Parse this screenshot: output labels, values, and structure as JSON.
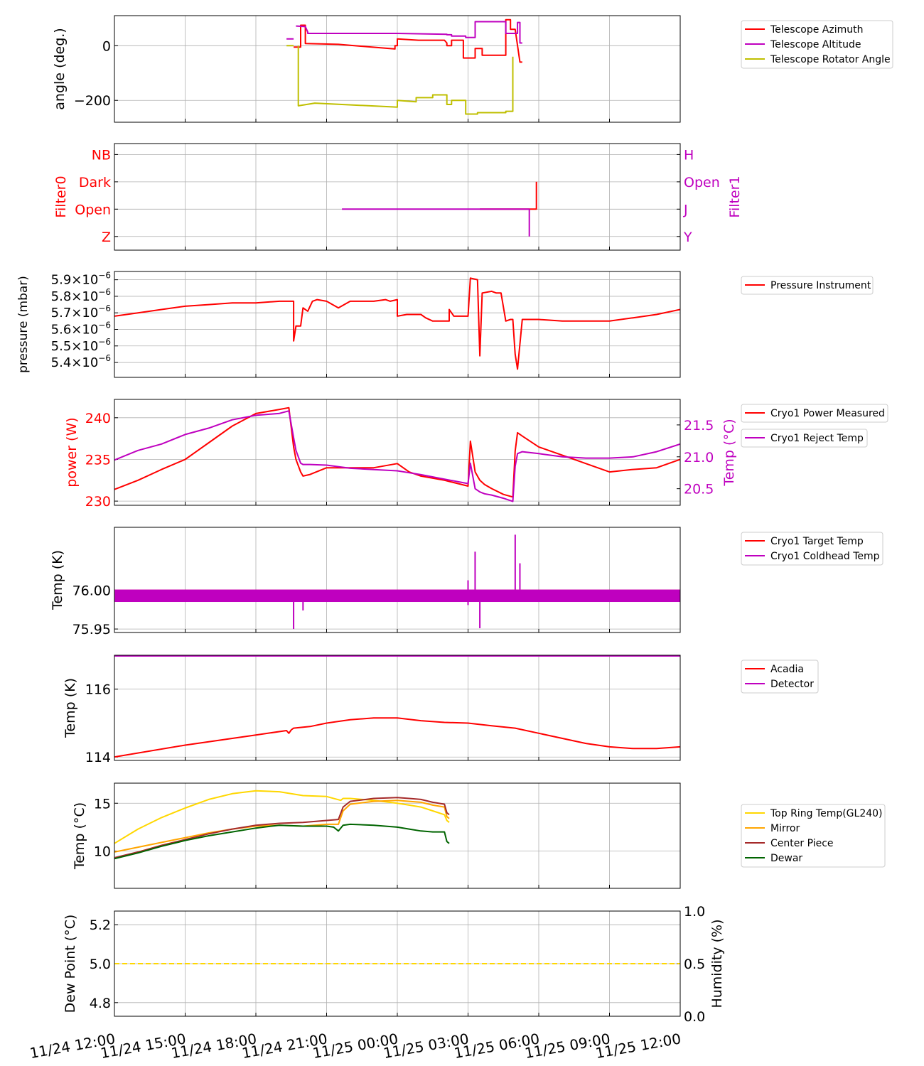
{
  "time_axis": {
    "start": "11/24 12:00",
    "end": "11/25 12:00",
    "tick_hours": [
      0,
      3,
      6,
      9,
      12,
      15,
      18,
      21,
      24
    ],
    "tick_labels": [
      "11/24 12:00",
      "11/24 15:00",
      "11/24 18:00",
      "11/24 21:00",
      "11/25 00:00",
      "11/25 03:00",
      "11/25 06:00",
      "11/25 09:00",
      "11/25 12:00"
    ]
  },
  "colors": {
    "red": "#ff0000",
    "magenta": "#bf00bf",
    "olive": "#bfbf00",
    "gold": "#ffd700",
    "orange": "#ffa500",
    "brown": "#a52a2a",
    "darkgreen": "#006400",
    "grid": "#b0b0b0"
  },
  "chart_data": [
    {
      "id": "telescope",
      "type": "line",
      "ylabel": "angle (deg.)",
      "ylim": [
        -280,
        110
      ],
      "yticks": [
        0,
        -200
      ],
      "ytick_labels": [
        "0",
        "−200"
      ],
      "series": [
        {
          "name": "Telescope Azimuth",
          "color": "#ff0000",
          "x": [
            7.3,
            7.3,
            7.6,
            7.6,
            7.9,
            7.9,
            8.1,
            8.1,
            9.5,
            11.9,
            11.9,
            12.0,
            12.0,
            12.9,
            12.9,
            14.0,
            14.1,
            14.1,
            14.3,
            14.3,
            14.8,
            14.8,
            15.3,
            15.3,
            15.6,
            15.6,
            16.6,
            16.6,
            16.8,
            16.8,
            17.0,
            17.2,
            17.2,
            17.3
          ],
          "y": [
            -60,
            -60,
            null,
            -5,
            -5,
            75,
            75,
            8,
            5,
            -12,
            0,
            0,
            25,
            20,
            20,
            20,
            10,
            0,
            0,
            20,
            20,
            -45,
            -45,
            -10,
            -10,
            -35,
            -35,
            95,
            95,
            60,
            60,
            -60,
            -60,
            -60
          ]
        },
        {
          "name": "Telescope Altitude",
          "color": "#bf00bf",
          "x": [
            7.3,
            7.6,
            null,
            7.7,
            8.1,
            8.2,
            8.2,
            10.0,
            12.0,
            14.1,
            14.1,
            14.3,
            14.3,
            14.9,
            14.9,
            15.3,
            15.3,
            16.6,
            16.6,
            17.1,
            17.1,
            17.2,
            17.2,
            17.3
          ],
          "y": [
            25,
            25,
            null,
            72,
            70,
            50,
            45,
            45,
            45,
            42,
            40,
            40,
            35,
            35,
            30,
            30,
            88,
            88,
            45,
            45,
            85,
            85,
            10,
            10
          ]
        },
        {
          "name": "Telescope Rotator Angle",
          "color": "#bfbf00",
          "x": [
            7.3,
            7.6,
            7.6,
            7.8,
            7.8,
            8.5,
            12.0,
            12.0,
            12.8,
            12.8,
            13.5,
            13.5,
            14.1,
            14.1,
            14.3,
            14.3,
            14.9,
            14.9,
            15.4,
            15.4,
            16.6,
            16.6,
            16.9,
            16.9
          ],
          "y": [
            0,
            0,
            null,
            0,
            -220,
            -210,
            -225,
            -200,
            -205,
            -190,
            -190,
            -180,
            -180,
            -215,
            -215,
            -200,
            -200,
            -250,
            -250,
            -245,
            -245,
            -240,
            -240,
            -40
          ]
        }
      ]
    },
    {
      "id": "filters",
      "type": "step",
      "ylabel": "Filter0",
      "ylabel_right": "Filter1",
      "ylim": [
        -0.5,
        3.4
      ],
      "left_categories": [
        "Z",
        "Open",
        "Dark",
        "NB"
      ],
      "right_categories": [
        "Y",
        "J",
        "Open",
        "H"
      ],
      "series": [
        {
          "name": "Filter0",
          "color": "#ff0000",
          "x": [
            15.5,
            17.6,
            17.6,
            17.9,
            17.9
          ],
          "y": [
            1,
            1,
            1,
            1,
            2
          ]
        },
        {
          "name": "Filter1",
          "color": "#bf00bf",
          "x": [
            9.65,
            17.6,
            17.6
          ],
          "y": [
            1,
            1,
            0
          ]
        }
      ]
    },
    {
      "id": "pressure",
      "type": "line",
      "ylabel": "pressure (mbar)",
      "ylim": [
        5.31e-06,
        5.95e-06
      ],
      "ytick_values": [
        5.9e-06,
        5.8e-06,
        5.7e-06,
        5.6e-06,
        5.5e-06,
        5.4e-06
      ],
      "ytick_mantissas": [
        "5.9",
        "5.8",
        "5.7",
        "5.6",
        "5.5",
        "5.4"
      ],
      "ytick_times": "×10",
      "ytick_exponent": "−6",
      "series": [
        {
          "name": "Pressure Instrument",
          "color": "#ff0000",
          "x": [
            0,
            1,
            2,
            3,
            4,
            5,
            6,
            7,
            7.6,
            7.6,
            7.7,
            7.9,
            8.0,
            8.2,
            8.4,
            8.6,
            9,
            9.5,
            10,
            11,
            11.5,
            11.7,
            12.0,
            12.0,
            12.4,
            13,
            13.2,
            13.5,
            13.8,
            14.2,
            14.2,
            14.3,
            14.4,
            15.0,
            15.1,
            15.4,
            15.5,
            15.6,
            16.0,
            16.2,
            16.4,
            16.6,
            16.8,
            16.9,
            17.0,
            17.1,
            17.3,
            18,
            19,
            20,
            21,
            22,
            23,
            24
          ],
          "y": [
            5.68,
            5.7,
            5.72,
            5.74,
            5.75,
            5.76,
            5.76,
            5.77,
            5.77,
            5.53,
            5.62,
            5.62,
            5.73,
            5.71,
            5.77,
            5.78,
            5.77,
            5.73,
            5.77,
            5.77,
            5.78,
            5.77,
            5.78,
            5.68,
            5.69,
            5.69,
            5.67,
            5.65,
            5.65,
            5.65,
            5.72,
            5.7,
            5.68,
            5.68,
            5.91,
            5.9,
            5.44,
            5.82,
            5.83,
            5.82,
            5.82,
            5.65,
            5.66,
            5.66,
            5.45,
            5.36,
            5.66,
            5.66,
            5.65,
            5.65,
            5.65,
            5.67,
            5.69,
            5.72
          ]
        }
      ]
    },
    {
      "id": "cryo_power",
      "type": "line",
      "ylabel": "power (W)",
      "ylabel_right": "Temp (°C)",
      "ylim": [
        229.5,
        242.2
      ],
      "yticks": [
        230,
        235,
        240
      ],
      "ylim_right": [
        20.24,
        21.9
      ],
      "yticks_right": [
        20.5,
        21.0,
        21.5
      ],
      "ytick_labels_right": [
        "20.5",
        "21.0",
        "21.5"
      ],
      "series": [
        {
          "name": "Cryo1 Power Measured",
          "color": "#ff0000",
          "axis": "left",
          "x": [
            0,
            1,
            2,
            3,
            4,
            5,
            6,
            7,
            7.4,
            7.6,
            7.7,
            7.9,
            8.0,
            8.3,
            9,
            10,
            11,
            12,
            12.5,
            13,
            14,
            15,
            15.1,
            15.3,
            15.5,
            15.7,
            16,
            16.5,
            16.9,
            17.0,
            17.1,
            17.3,
            18,
            19,
            20,
            21,
            22,
            23,
            24
          ],
          "y": [
            231.4,
            232.5,
            233.8,
            235,
            237,
            239,
            240.5,
            241,
            241.2,
            236.5,
            235,
            233.5,
            233,
            233.2,
            234,
            234,
            234,
            234.5,
            233.5,
            233,
            232.5,
            231.8,
            237.2,
            233.5,
            232.5,
            232,
            231.5,
            230.8,
            230.5,
            236,
            238.2,
            237.8,
            236.5,
            235.5,
            234.5,
            233.5,
            233.8,
            234,
            235
          ]
        },
        {
          "name": "Cryo1 Reject Temp",
          "color": "#bf00bf",
          "axis": "right",
          "x": [
            0,
            1,
            2,
            3,
            4,
            5,
            6,
            7,
            7.4,
            7.6,
            7.7,
            7.9,
            8.0,
            8.3,
            9,
            10,
            11,
            12,
            12.5,
            13,
            14,
            15,
            15.1,
            15.3,
            15.5,
            15.7,
            16,
            16.5,
            16.9,
            17.0,
            17.1,
            17.3,
            18,
            19,
            20,
            21,
            22,
            23,
            24
          ],
          "y": [
            20.95,
            21.1,
            21.2,
            21.35,
            21.45,
            21.58,
            21.65,
            21.68,
            21.72,
            21.3,
            21.1,
            20.9,
            20.88,
            20.88,
            20.87,
            20.82,
            20.8,
            20.78,
            20.75,
            20.72,
            20.65,
            20.58,
            20.9,
            20.5,
            20.45,
            20.42,
            20.4,
            20.35,
            20.3,
            20.85,
            21.05,
            21.08,
            21.05,
            21.0,
            20.98,
            20.98,
            21.0,
            21.08,
            21.2
          ]
        }
      ]
    },
    {
      "id": "cryo_temp",
      "type": "line",
      "ylabel": "Temp (K)",
      "ylim": [
        75.9455,
        76.0815
      ],
      "yticks": [
        75.95,
        76.0
      ],
      "ytick_labels": [
        "75.95",
        "76.00"
      ],
      "series": [
        {
          "name": "Cryo1 Target Temp",
          "color": "#ff0000",
          "x": [
            0,
            24
          ],
          "y": [
            76.0,
            76.0
          ]
        },
        {
          "name": "Cryo1 Coldhead Temp",
          "color": "#bf00bf",
          "x": [
            0,
            24
          ],
          "y": [
            75.993,
            75.993
          ],
          "band": [
            75.985,
            76.001
          ],
          "spikes": [
            {
              "x": 7.6,
              "y": 75.95
            },
            {
              "x": 8.0,
              "y": 75.974
            },
            {
              "x": 15.0,
              "y": 76.013
            },
            {
              "x": 15.0,
              "y": 75.981
            },
            {
              "x": 15.3,
              "y": 76.05
            },
            {
              "x": 15.5,
              "y": 75.951
            },
            {
              "x": 17.0,
              "y": 76.072
            },
            {
              "x": 17.2,
              "y": 76.035
            }
          ]
        }
      ]
    },
    {
      "id": "acadia",
      "type": "line",
      "ylabel": "Temp (K)",
      "ylim": [
        113.9,
        117.0
      ],
      "yticks": [
        114,
        116
      ],
      "series": [
        {
          "name": "Acadia",
          "color": "#ff0000",
          "x": [
            0,
            3,
            6,
            7.3,
            7.4,
            7.5,
            7.6,
            8.0,
            8.3,
            9,
            10,
            11,
            12,
            13,
            14,
            15,
            16,
            17,
            18,
            19,
            20,
            21,
            22,
            23,
            24
          ],
          "y": [
            114.0,
            114.35,
            114.65,
            114.78,
            114.7,
            114.8,
            114.85,
            114.88,
            114.9,
            115.0,
            115.1,
            115.15,
            115.15,
            115.07,
            115.02,
            115.0,
            114.92,
            114.85,
            114.7,
            114.55,
            114.4,
            114.3,
            114.25,
            114.25,
            114.3
          ]
        },
        {
          "name": "Detector",
          "color": "#bf00bf",
          "x": [
            0,
            24
          ],
          "y": [
            116.98,
            116.98
          ]
        }
      ]
    },
    {
      "id": "telescope_temps",
      "type": "line",
      "ylabel": "Temp (°C)",
      "ylim": [
        6.1,
        17.1
      ],
      "yticks": [
        10,
        15
      ],
      "series": [
        {
          "name": "Top Ring Temp(GL240)",
          "color": "#ffd700",
          "x": [
            0,
            1,
            2,
            3,
            4,
            5,
            6,
            7,
            8,
            9,
            9.6,
            9.7,
            10,
            11,
            12,
            12.5,
            13,
            13.5,
            14,
            14.1,
            14.2
          ],
          "y": [
            10.8,
            12.3,
            13.5,
            14.5,
            15.4,
            16.0,
            16.3,
            16.2,
            15.8,
            15.7,
            15.3,
            15.5,
            15.5,
            15.3,
            15.0,
            14.8,
            14.6,
            14.2,
            13.8,
            13.2,
            13.0
          ]
        },
        {
          "name": "Mirror",
          "color": "#ffa500",
          "x": [
            0,
            1,
            2,
            3,
            4,
            5,
            6,
            7,
            8,
            9,
            9.5,
            9.7,
            10,
            11,
            12,
            12.5,
            13,
            13.5,
            14,
            14.1,
            14.2
          ],
          "y": [
            9.9,
            10.4,
            10.9,
            11.4,
            11.9,
            12.3,
            12.6,
            12.7,
            12.6,
            12.8,
            12.8,
            14.2,
            14.9,
            15.2,
            15.3,
            15.2,
            15.1,
            14.8,
            14.6,
            13.6,
            13.4
          ]
        },
        {
          "name": "Center Piece",
          "color": "#a52a2a",
          "x": [
            0,
            1,
            2,
            3,
            4,
            5,
            6,
            7,
            8,
            9,
            9.5,
            9.7,
            10,
            11,
            12,
            12.5,
            13,
            13.5,
            14,
            14.1,
            14.2
          ],
          "y": [
            9.3,
            9.9,
            10.6,
            11.2,
            11.8,
            12.3,
            12.7,
            12.9,
            13.0,
            13.2,
            13.3,
            14.6,
            15.2,
            15.5,
            15.6,
            15.5,
            15.4,
            15.1,
            14.9,
            14.0,
            13.8
          ]
        },
        {
          "name": "Dewar",
          "color": "#006400",
          "x": [
            0,
            1,
            2,
            3,
            4,
            5,
            6,
            7,
            8,
            9,
            9.3,
            9.5,
            9.7,
            10,
            11,
            12,
            12.5,
            13,
            13.5,
            14,
            14.1,
            14.2
          ],
          "y": [
            9.2,
            9.8,
            10.5,
            11.1,
            11.6,
            12.0,
            12.4,
            12.7,
            12.6,
            12.6,
            12.5,
            12.1,
            12.7,
            12.8,
            12.7,
            12.5,
            12.3,
            12.1,
            12.0,
            12.0,
            11.0,
            10.8
          ]
        }
      ]
    },
    {
      "id": "dewpoint",
      "type": "line",
      "ylabel": "Dew Point (°C)",
      "ylabel_right": "Humidity (%)",
      "ylim": [
        4.73,
        5.27
      ],
      "yticks": [
        4.8,
        5.0,
        5.2
      ],
      "ytick_labels": [
        "4.8",
        "5.0",
        "5.2"
      ],
      "ylim_right": [
        0.0,
        1.0
      ],
      "yticks_right": [
        0.0,
        0.5,
        1.0
      ],
      "ytick_labels_right": [
        "0.0",
        "0.5",
        "1.0"
      ],
      "series": [
        {
          "name": "Dew Point",
          "color": "#ffd700",
          "dashed": true,
          "x": [
            0,
            24
          ],
          "y": [
            5.0,
            5.0
          ]
        }
      ]
    }
  ]
}
